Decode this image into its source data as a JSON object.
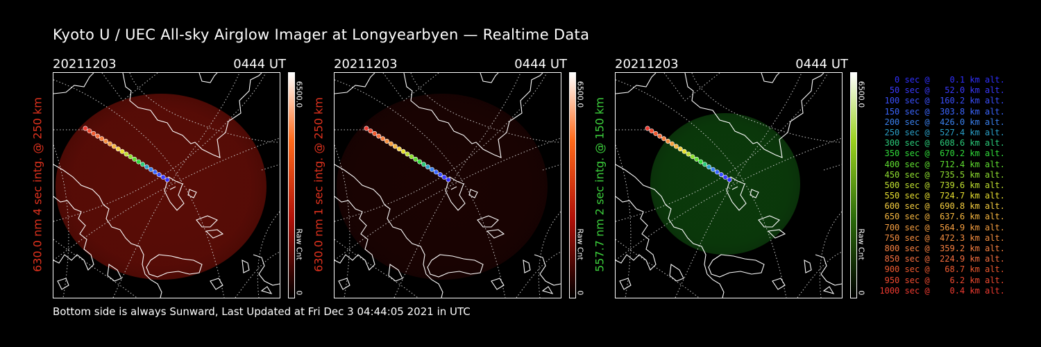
{
  "title": "Kyoto U / UEC All-sky Airglow Imager at Longyearbyen — Realtime Data",
  "footer": "Bottom side is always Sunward, Last Updated at Fri Dec  3 04:44:05 2021 in UTC",
  "panels": [
    {
      "date": "20211203",
      "time": "0444 UT",
      "ylabel": "630.0 nm 4 sec intg. @ 250 km",
      "ylabel_color": "#e0321e",
      "colorbar_max": "6500.0",
      "colorbar_label": "Raw Cnt",
      "colorbar_min": "0",
      "glow_color": "#5a0c06",
      "bar_colors": [
        "#ffffff",
        "#ff6a1a",
        "#b01008",
        "#000000"
      ]
    },
    {
      "date": "20211203",
      "time": "0444 UT",
      "ylabel": "630.0 nm 1 sec intg. @ 250 km",
      "ylabel_color": "#e0321e",
      "colorbar_max": "6500.0",
      "colorbar_label": "Raw Cnt",
      "colorbar_min": "0",
      "glow_color": "#1a0302",
      "bar_colors": [
        "#ffffff",
        "#ff6a1a",
        "#b01008",
        "#000000"
      ]
    },
    {
      "date": "20211203",
      "time": "0444 UT",
      "ylabel": "557.7 nm 2 sec intg. @ 150 km",
      "ylabel_color": "#3cd03c",
      "colorbar_max": "6500.0",
      "colorbar_label": "Raw Cnt",
      "colorbar_min": "0",
      "glow_color": "#0b3a0b",
      "bar_colors": [
        "#ffffff",
        "#9ad21e",
        "#2a6a0a",
        "#000000"
      ]
    }
  ],
  "legend": [
    {
      "text": "   0 sec @    0.1 km alt.",
      "color": "#3030ff"
    },
    {
      "text": "  50 sec @   52.0 km alt.",
      "color": "#3a3aff"
    },
    {
      "text": " 100 sec @  160.2 km alt.",
      "color": "#3a50ff"
    },
    {
      "text": " 150 sec @  303.8 km alt.",
      "color": "#3a66ff"
    },
    {
      "text": " 200 sec @  426.0 km alt.",
      "color": "#3a82f0"
    },
    {
      "text": " 250 sec @  527.4 km alt.",
      "color": "#2aa0c8"
    },
    {
      "text": " 300 sec @  608.6 km alt.",
      "color": "#2acc7a"
    },
    {
      "text": " 350 sec @  670.2 km alt.",
      "color": "#30dc3a"
    },
    {
      "text": " 400 sec @  712.4 km alt.",
      "color": "#60e030"
    },
    {
      "text": " 450 sec @  735.5 km alt.",
      "color": "#90e030"
    },
    {
      "text": " 500 sec @  739.6 km alt.",
      "color": "#c0e030"
    },
    {
      "text": " 550 sec @  724.7 km alt.",
      "color": "#e8e030"
    },
    {
      "text": " 600 sec @  690.8 km alt.",
      "color": "#f8d040"
    },
    {
      "text": " 650 sec @  637.6 km alt.",
      "color": "#f8b840"
    },
    {
      "text": " 700 sec @  564.9 km alt.",
      "color": "#f8a040"
    },
    {
      "text": " 750 sec @  472.3 km alt.",
      "color": "#f89040"
    },
    {
      "text": " 800 sec @  359.2 km alt.",
      "color": "#f88040"
    },
    {
      "text": " 850 sec @  224.9 km alt.",
      "color": "#f87040"
    },
    {
      "text": " 900 sec @   68.7 km alt.",
      "color": "#f05a30"
    },
    {
      "text": " 950 sec @    6.2 km alt.",
      "color": "#f04a30"
    },
    {
      "text": "1000 sec @    0.4 km alt.",
      "color": "#f03a30"
    }
  ]
}
